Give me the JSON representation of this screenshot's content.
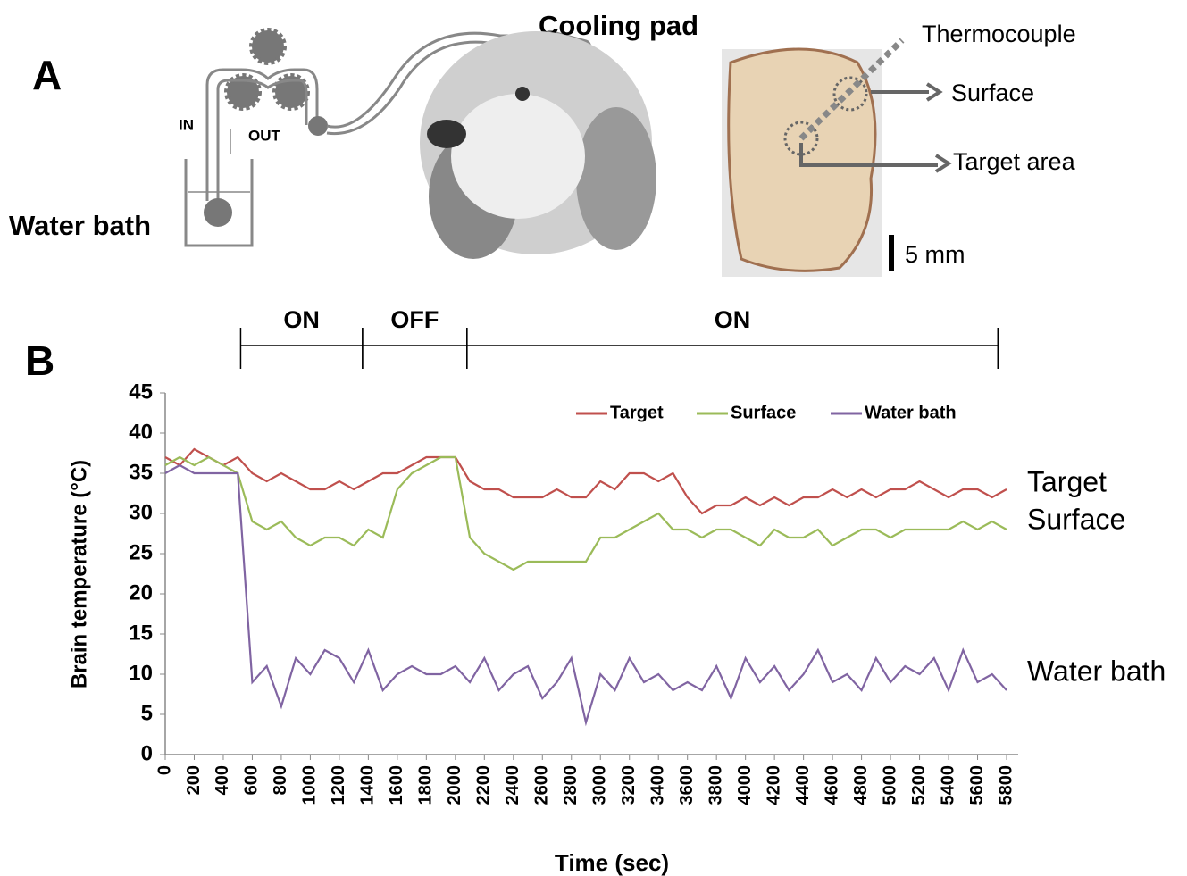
{
  "panel_labels": [
    "A",
    "B"
  ],
  "diagram": {
    "cooling_pad": "Cooling pad",
    "thermocouple": "Thermocouple",
    "surface": "Surface",
    "target_area": "Target area",
    "in": "IN",
    "out": "OUT",
    "water_bath": "Water bath",
    "scale": "5 mm"
  },
  "chart_data": {
    "type": "line",
    "x_label": "Time (sec)",
    "y_label": "Brain temperature (°C)",
    "x": [
      0,
      100,
      200,
      300,
      400,
      500,
      600,
      700,
      800,
      900,
      1000,
      1100,
      1200,
      1300,
      1400,
      1500,
      1600,
      1700,
      1800,
      1900,
      2000,
      2100,
      2200,
      2300,
      2400,
      2500,
      2600,
      2700,
      2800,
      2900,
      3000,
      3100,
      3200,
      3300,
      3400,
      3500,
      3600,
      3700,
      3800,
      3900,
      4000,
      4100,
      4200,
      4300,
      4400,
      4500,
      4600,
      4700,
      4800,
      4900,
      5000,
      5100,
      5200,
      5300,
      5400,
      5500,
      5600,
      5700,
      5800
    ],
    "series": [
      {
        "name": "Target",
        "color": "#c0504d",
        "values": [
          37,
          36,
          38,
          37,
          36,
          37,
          35,
          34,
          35,
          34,
          33,
          33,
          34,
          33,
          34,
          35,
          35,
          36,
          37,
          37,
          37,
          34,
          33,
          33,
          32,
          32,
          32,
          33,
          32,
          32,
          34,
          33,
          35,
          35,
          34,
          35,
          32,
          30,
          31,
          31,
          32,
          31,
          32,
          31,
          32,
          32,
          33,
          32,
          33,
          32,
          33,
          33,
          34,
          33,
          32,
          33,
          33,
          32,
          33
        ]
      },
      {
        "name": "Surface",
        "color": "#9bbb59",
        "values": [
          36,
          37,
          36,
          37,
          36,
          35,
          29,
          28,
          29,
          27,
          26,
          27,
          27,
          26,
          28,
          27,
          33,
          35,
          36,
          37,
          37,
          27,
          25,
          24,
          23,
          24,
          24,
          24,
          24,
          24,
          27,
          27,
          28,
          29,
          30,
          28,
          28,
          27,
          28,
          28,
          27,
          26,
          28,
          27,
          27,
          28,
          26,
          27,
          28,
          28,
          27,
          28,
          28,
          28,
          28,
          29,
          28,
          29,
          28
        ]
      },
      {
        "name": "Water bath",
        "color": "#8064a2",
        "values": [
          35,
          36,
          35,
          35,
          35,
          35,
          9,
          11,
          6,
          12,
          10,
          13,
          12,
          9,
          13,
          8,
          10,
          11,
          10,
          10,
          11,
          9,
          12,
          8,
          10,
          11,
          7,
          9,
          12,
          4,
          10,
          8,
          12,
          9,
          10,
          8,
          9,
          8,
          11,
          7,
          12,
          9,
          11,
          8,
          10,
          13,
          9,
          10,
          8,
          12,
          9,
          11,
          10,
          12,
          8,
          13,
          9,
          10,
          8
        ]
      }
    ],
    "xlim": [
      0,
      5880
    ],
    "xticks": [
      0,
      200,
      400,
      600,
      800,
      1000,
      1200,
      1400,
      1600,
      1800,
      2000,
      2200,
      2400,
      2600,
      2800,
      3000,
      3200,
      3400,
      3600,
      3800,
      4000,
      4200,
      4400,
      4600,
      4800,
      5000,
      5200,
      5400,
      5600,
      5800
    ],
    "ylim": [
      0,
      45
    ],
    "yticks": [
      0,
      5,
      10,
      15,
      20,
      25,
      30,
      35,
      40,
      45
    ],
    "grid": false,
    "legend": "top-right",
    "phases": [
      {
        "label": "ON",
        "start": 520,
        "end": 1360
      },
      {
        "label": "OFF",
        "start": 1360,
        "end": 2080
      },
      {
        "label": "ON",
        "start": 2080,
        "end": 5740
      }
    ],
    "annotations": [
      "Target",
      "Surface",
      "Water bath"
    ]
  }
}
